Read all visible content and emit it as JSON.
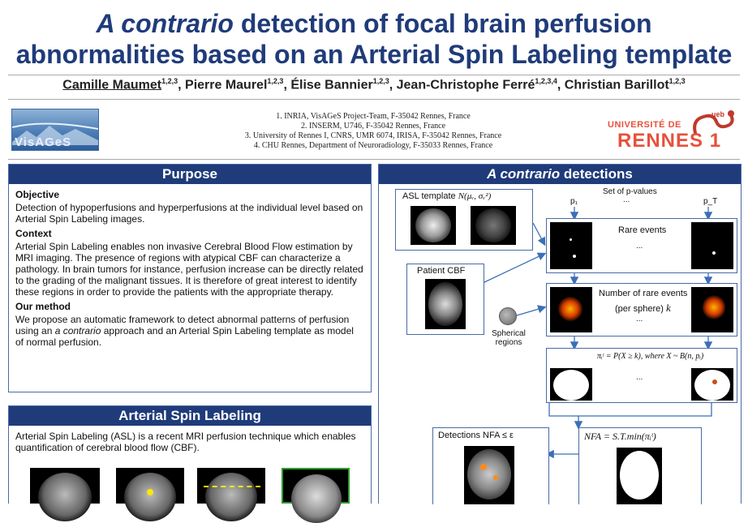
{
  "title": {
    "line1_italic": "A contrario",
    "line1_rest": " detection of focal brain perfusion",
    "line2": "abnormalities based on an Arterial Spin Labeling template"
  },
  "authors": [
    {
      "name": "Camille Maumet",
      "sup": "1,2,3",
      "sep": ", "
    },
    {
      "name": "Pierre Maurel",
      "sup": "1,2,3",
      "sep": ", "
    },
    {
      "name": "Élise Bannier",
      "sup": "1,2,3",
      "sep": ", "
    },
    {
      "name": "Jean-Christophe Ferré",
      "sup": "1,2,3,4",
      "sep": ", "
    },
    {
      "name": "Christian Barillot",
      "sup": "1,2,3",
      "sep": ""
    }
  ],
  "affiliations": [
    "1. INRIA, VisAGeS Project-Team, F-35042 Rennes, France",
    "2. INSERM, U746, F-35042 Rennes, France",
    "3. University of Rennes I, CNRS, UMR 6074, IRISA, F-35042 Rennes, France",
    "4. CHU Rennes, Department of Neuroradiology, F-35033 Rennes, France"
  ],
  "logos": {
    "visages": "VisAGeS",
    "rennes_top": "UNIVERSITÉ DE",
    "rennes_main": "RENNES 1",
    "ueb": "ueb"
  },
  "purpose": {
    "heading": "Purpose",
    "objective_title": "Objective",
    "objective_text": "Detection of hypoperfusions and hyperperfusions at the individual level based on Arterial Spin Labeling images.",
    "context_title": "Context",
    "context_text": "Arterial Spin Labeling enables non invasive Cerebral Blood Flow estimation by MRI imaging. The presence of regions with atypical CBF can characterize a pathology. In brain tumors for instance, perfusion increase can be directly related to the grading of the malignant tissues. It is therefore of great interest to identify these regions in order to provide the patients with the appropriate therapy.",
    "method_title": "Our method",
    "method_text_1": "We propose an automatic framework to detect abnormal patterns of perfusion using an ",
    "method_text_italic": "a contrario",
    "method_text_2": " approach and an Arterial Spin Labeling template as model of normal perfusion."
  },
  "asl": {
    "heading": "Arterial Spin Labeling",
    "text": "Arterial Spin Labeling (ASL) is a recent MRI perfusion technique which enables quantification of cerebral blood flow (CBF)."
  },
  "detections": {
    "heading_italic": "A contrario",
    "heading_rest": " detections",
    "asl_template_label": "ASL template",
    "asl_template_math": "N(μᵥ, σᵥ²)",
    "set_pvalues": "Set of p-values",
    "p1": "p₁",
    "pT": "p_T",
    "dots": "...",
    "rare_events": "Rare events",
    "patient_cbf": "Patient CBF",
    "number_rare_line1": "Number of rare events",
    "number_rare_line2": "(per sphere)",
    "number_rare_k": "k",
    "spherical_regions": "Spherical regions",
    "formula": "πᵢᵗ = P(X ≥ k), where X ~ B(n, pᵢ)",
    "nfa": "NFA = S.T.min(πᵢᵗ)",
    "detections_label": "Detections NFA ≤ ε"
  },
  "colors": {
    "title_blue": "#1f3b7a",
    "panel_header": "#1f3b7a",
    "panel_border": "#4a6aa3",
    "arrow": "#3b6fb6",
    "rennes_red": "#e7513c"
  }
}
